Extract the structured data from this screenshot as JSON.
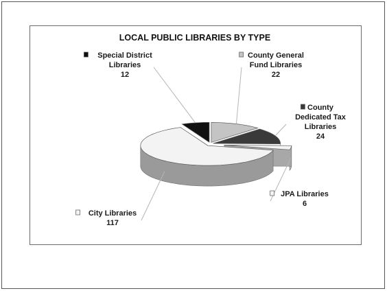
{
  "chart_data": {
    "type": "pie",
    "title": "LOCAL PUBLIC LIBRARIES BY TYPE",
    "slices": [
      {
        "label_lines": [
          "County General",
          "Fund Libraries"
        ],
        "value": 22,
        "value_text": "22",
        "color": "#c4c4c4",
        "side": "#8e8e8e",
        "explode": 0
      },
      {
        "label_lines": [
          "County",
          "Dedicated Tax",
          "Libraries"
        ],
        "value": 24,
        "value_text": "24",
        "color": "#3a3a3a",
        "side": "#1e1e1e",
        "explode": 0
      },
      {
        "label_lines": [
          "JPA Libraries"
        ],
        "value": 6,
        "value_text": "6",
        "color": "#f4f4f4",
        "side": "#b8b8b8",
        "explode": 1
      },
      {
        "label_lines": [
          "City Libraries"
        ],
        "value": 117,
        "value_text": "117",
        "color": "#f3f3f3",
        "side": "#9a9a9a",
        "explode": 0
      },
      {
        "label_lines": [
          "Special District",
          "Libraries"
        ],
        "value": 12,
        "value_text": "12",
        "color": "#101010",
        "side": "#000000",
        "explode": 0
      }
    ],
    "legend": "none",
    "style": "3d-exploded"
  }
}
